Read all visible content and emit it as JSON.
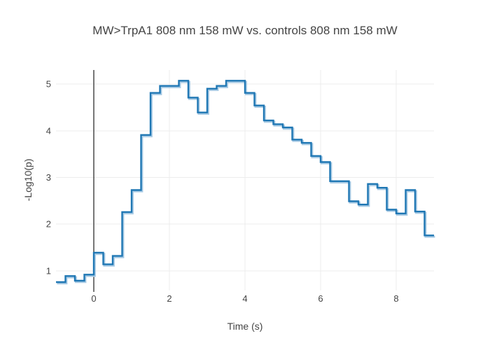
{
  "title": "MW>TrpA1 808 nm 158 mW vs. controls 808 nm 158 mW",
  "chart_data": {
    "type": "line",
    "subtype": "step-hv",
    "title": "MW>TrpA1 808 nm 158 mW vs. controls 808 nm 158 mW",
    "xlabel": "Time (s)",
    "ylabel": "-Log10(p)",
    "legend_position": "none",
    "grid": true,
    "xlim": [
      -1,
      9
    ],
    "ylim": [
      0.58,
      5.3
    ],
    "xticks": [
      0,
      2,
      4,
      6,
      8
    ],
    "yticks": [
      1,
      2,
      3,
      4,
      5
    ],
    "zero_line_x": 0,
    "x_end": 9.0,
    "x": [
      -1.0,
      -0.75,
      -0.5,
      -0.25,
      0.0,
      0.25,
      0.5,
      0.75,
      1.0,
      1.25,
      1.5,
      1.75,
      2.0,
      2.25,
      2.5,
      2.75,
      3.0,
      3.25,
      3.5,
      3.75,
      4.0,
      4.25,
      4.5,
      4.75,
      5.0,
      5.25,
      5.5,
      5.75,
      6.0,
      6.25,
      6.5,
      6.75,
      7.0,
      7.25,
      7.5,
      7.75,
      8.0,
      8.25,
      8.5,
      8.75
    ],
    "values": [
      0.76,
      0.89,
      0.79,
      0.92,
      1.39,
      1.14,
      1.32,
      2.26,
      2.73,
      3.91,
      4.81,
      4.96,
      4.96,
      5.07,
      4.71,
      4.39,
      4.9,
      4.96,
      5.07,
      5.07,
      4.81,
      4.54,
      4.22,
      4.14,
      4.07,
      3.81,
      3.74,
      3.46,
      3.33,
      2.92,
      2.92,
      2.49,
      2.42,
      2.86,
      2.78,
      2.31,
      2.23,
      2.73,
      2.27,
      1.76
    ],
    "colors": {
      "line": "#1f77b4",
      "line_shadow": "#a9cbe5",
      "grid": "#ececec",
      "zero_line": "#2e2e2e",
      "text": "#444444",
      "background": "#ffffff"
    }
  }
}
